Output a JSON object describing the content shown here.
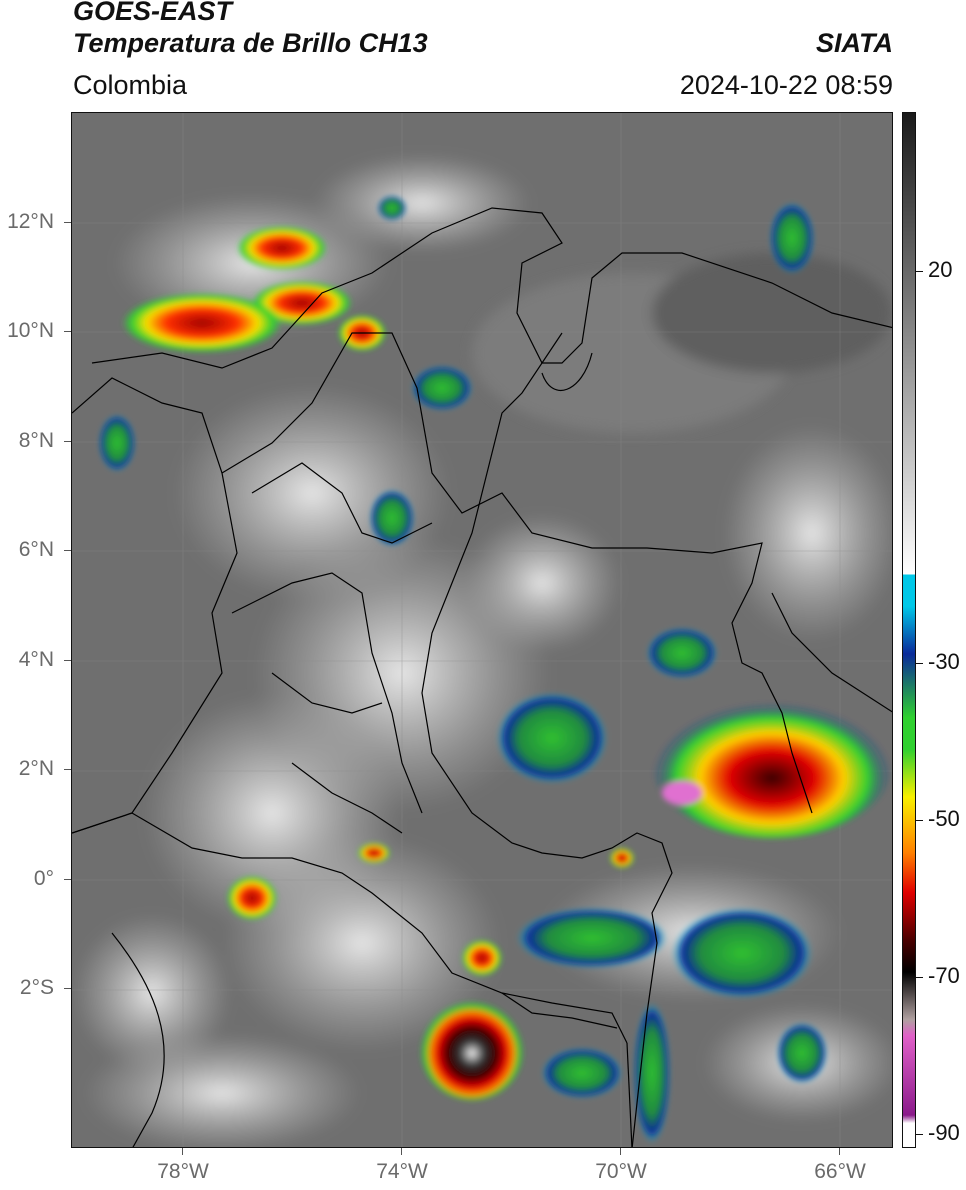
{
  "header": {
    "satellite": "GOES-EAST",
    "product": "Temperatura de Brillo CH13",
    "region": "Colombia",
    "agency": "SIATA",
    "datetime": "2024-10-22 08:59"
  },
  "axes": {
    "lat_ticks": [
      "12°N",
      "10°N",
      "8°N",
      "6°N",
      "4°N",
      "2°N",
      "0°",
      "2°S"
    ],
    "lon_ticks": [
      "78°W",
      "74°W",
      "70°W",
      "66°W"
    ],
    "lat_range": [
      -4.9,
      14.0
    ],
    "lon_range": [
      -80.0,
      -65.0
    ]
  },
  "colorbar": {
    "tick_labels": [
      "20",
      "-30",
      "-50",
      "-70",
      "-90"
    ],
    "tick_values": [
      20,
      -30,
      -50,
      -70,
      -90
    ],
    "range": [
      -92,
      38
    ],
    "colors": {
      "gray_warm": "#1a1a1a",
      "gray_cold": "#ffffff",
      "cyan": "#00c8e8",
      "blue": "#0a2a9a",
      "green": "#30d030",
      "yellow": "#f8f000",
      "orange": "#ff8000",
      "red": "#e00000",
      "dark_red": "#4a0000",
      "black": "#000000",
      "pink": "#e060c8",
      "purple": "#8a1a8a"
    }
  },
  "map_colors": {
    "background_gray": "#6a6a6a",
    "cloud_light": "#d8d8d8",
    "border_line": "#000000"
  }
}
